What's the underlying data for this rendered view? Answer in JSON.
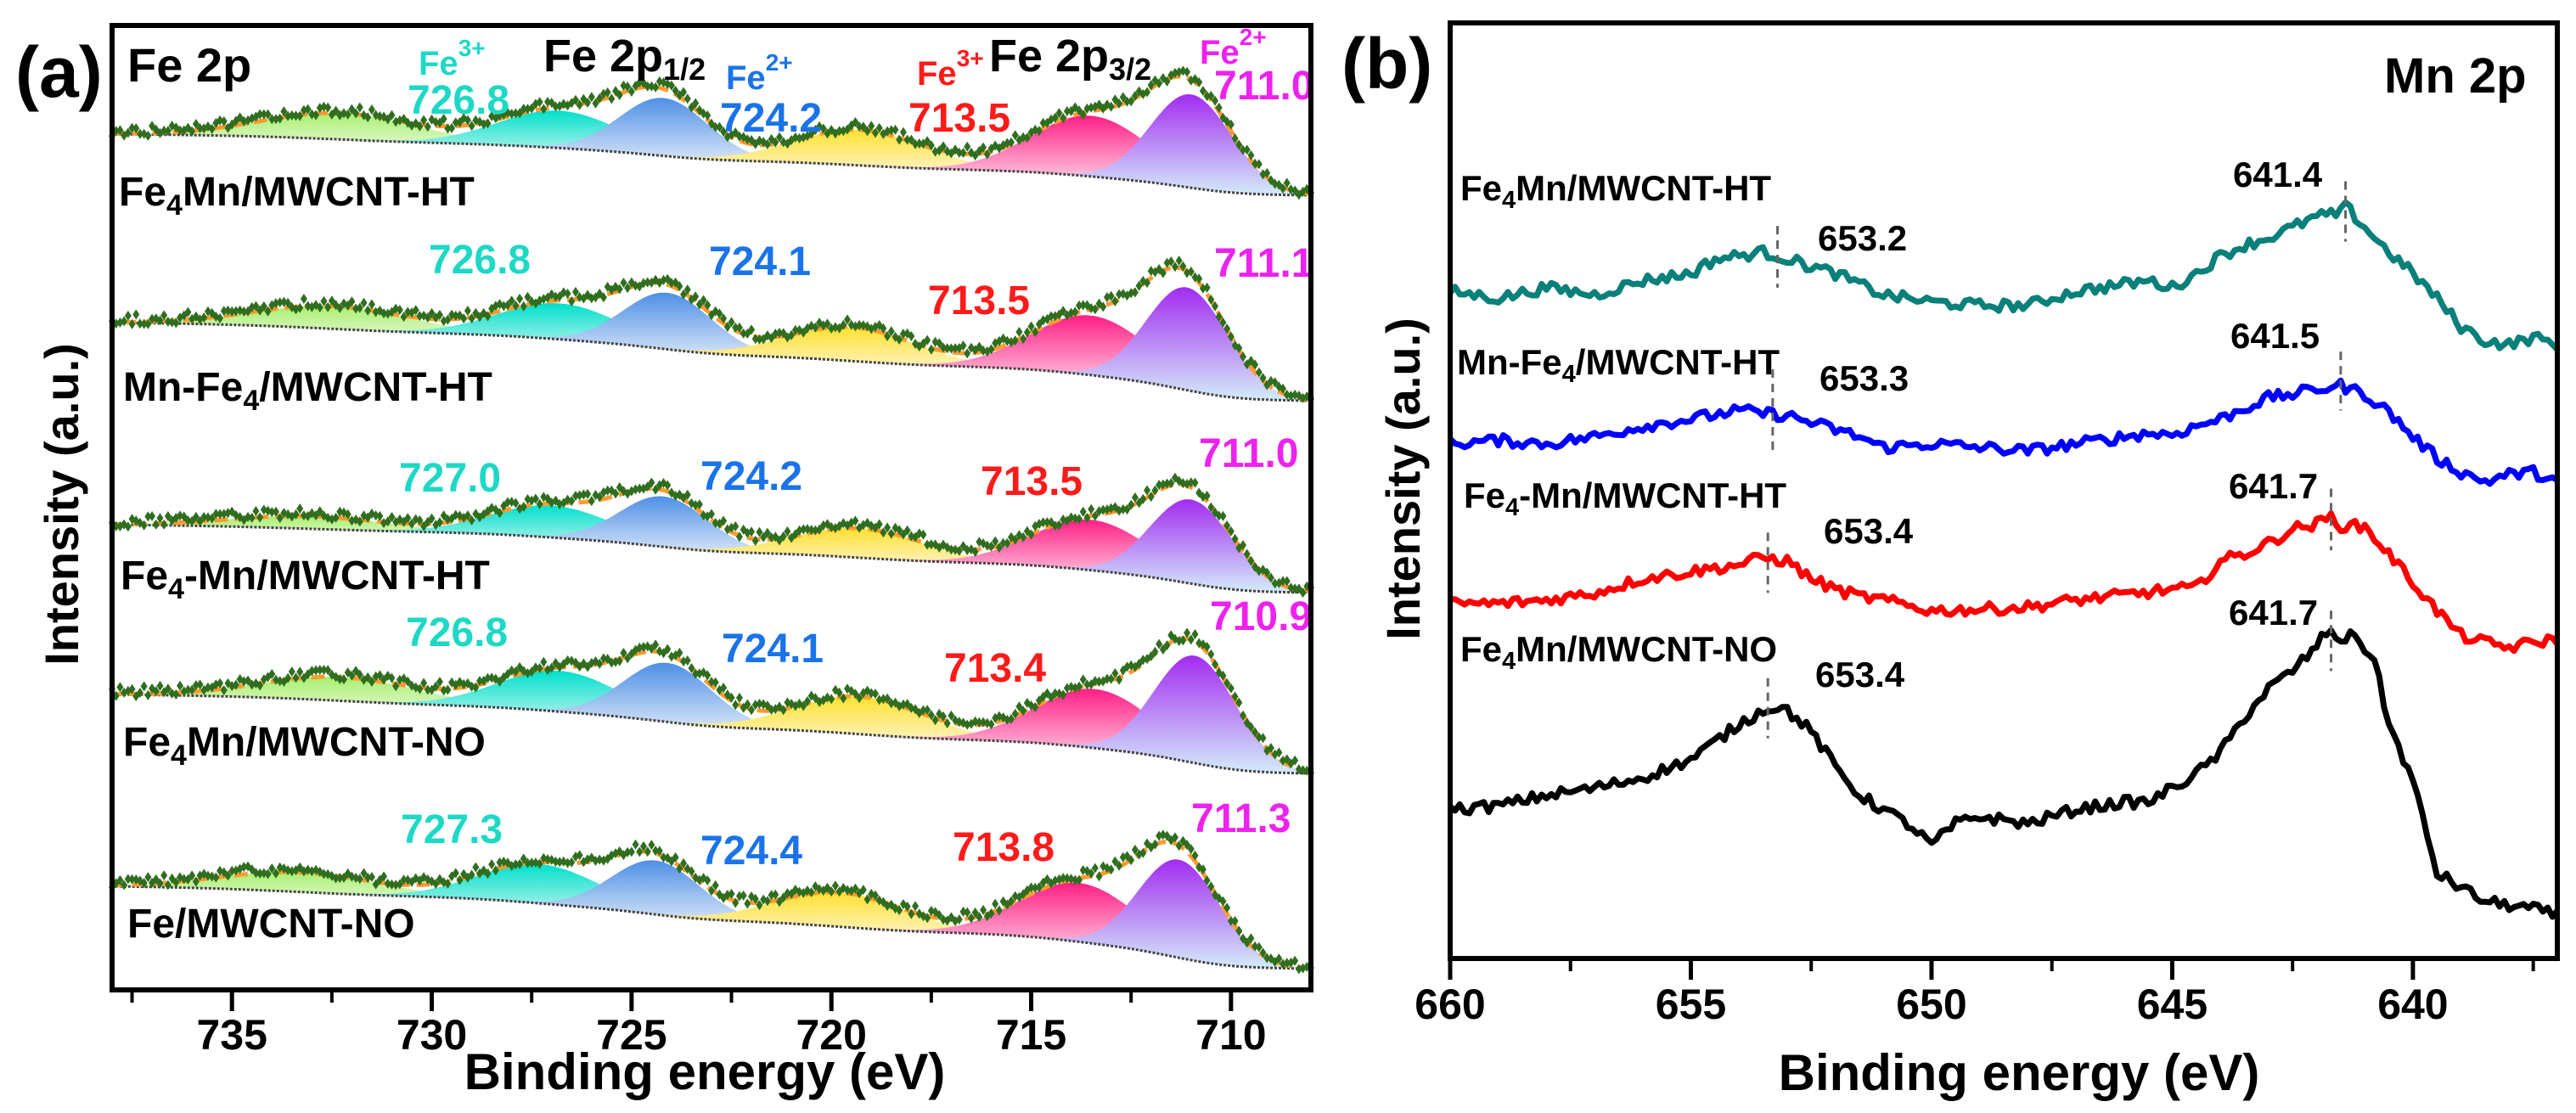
{
  "figure": {
    "panel_a_tag": "(a)",
    "panel_b_tag": "(b)"
  },
  "chart_data": [
    {
      "type": "area",
      "title": "Fe 2p",
      "region_labels": {
        "p12": {
          "main": "Fe 2p",
          "sub": "1/2"
        },
        "p32": {
          "main": "Fe 2p",
          "sub": "3/2"
        }
      },
      "species_labels": [
        {
          "text": "Fe",
          "sup": "3+",
          "color": "#1ed8c6"
        },
        {
          "text": "Fe",
          "sup": "2+",
          "color": "#1a73e8"
        },
        {
          "text": "Fe",
          "sup": "3+",
          "color": "#ff1a1a"
        },
        {
          "text": "Fe",
          "sup": "2+",
          "color": "#ee22ee"
        }
      ],
      "xlabel": "Binding energy (eV)",
      "ylabel": "Intensity (a.u.)",
      "xlim": [
        738,
        708
      ],
      "xticks": [
        735,
        730,
        725,
        720,
        715,
        710
      ],
      "minor_xticks": [
        737.5,
        732.5,
        727.5,
        722.5,
        717.5,
        712.5
      ],
      "peak_label_colors": [
        "#1ed8c6",
        "#1a73e8",
        "#ff1a1a",
        "#ee22ee"
      ],
      "component_colors": {
        "sat_2p12": [
          "#a8f070",
          "#eef8e0"
        ],
        "fe3_2p12": [
          "#00e0cc",
          "#d8f6f2"
        ],
        "fe2_2p12": [
          "#4f8fe6",
          "#dde9f8"
        ],
        "sat_2p32": [
          "#ffe030",
          "#fff6d8"
        ],
        "fe3_2p32": [
          "#ff1f86",
          "#fff0f4"
        ],
        "fe2_2p32": [
          "#a22cf0",
          "#d4ecfa"
        ]
      },
      "envelope_color": "#ff9a30",
      "data_point_color": "#2f6e1f",
      "series": [
        {
          "label": [
            {
              "t": "Fe"
            },
            {
              "t": "4",
              "sub": true
            },
            {
              "t": "Mn/MWCNT-HT"
            }
          ],
          "intensity_scale": 1.0,
          "peak_labels": [
            "726.8",
            "724.2",
            "713.5",
            "711.0"
          ],
          "components": [
            {
              "id": "sat_2p12",
              "center": 732.3,
              "fwhm": 4.6,
              "height": 0.28
            },
            {
              "id": "fe3_2p12",
              "center": 726.8,
              "fwhm": 3.6,
              "height": 0.4
            },
            {
              "id": "fe2_2p12",
              "center": 724.2,
              "fwhm": 2.6,
              "height": 0.62
            },
            {
              "id": "sat_2p32",
              "center": 719.3,
              "fwhm": 3.8,
              "height": 0.38
            },
            {
              "id": "fe3_2p32",
              "center": 713.5,
              "fwhm": 3.5,
              "height": 0.65
            },
            {
              "id": "fe2_2p32",
              "center": 711.0,
              "fwhm": 2.4,
              "height": 1.0
            }
          ]
        },
        {
          "label": [
            {
              "t": "Mn-Fe"
            },
            {
              "t": "4",
              "sub": true
            },
            {
              "t": "/MWCNT-HT"
            }
          ],
          "intensity_scale": 1.1,
          "peak_labels": [
            "726.8",
            "724.1",
            "713.5",
            "711.1"
          ],
          "components": [
            {
              "id": "sat_2p12",
              "center": 732.5,
              "fwhm": 4.6,
              "height": 0.22
            },
            {
              "id": "fe3_2p12",
              "center": 726.8,
              "fwhm": 3.6,
              "height": 0.35
            },
            {
              "id": "fe2_2p12",
              "center": 724.1,
              "fwhm": 2.6,
              "height": 0.55
            },
            {
              "id": "sat_2p32",
              "center": 719.5,
              "fwhm": 3.8,
              "height": 0.33
            },
            {
              "id": "fe3_2p32",
              "center": 713.5,
              "fwhm": 3.5,
              "height": 0.58
            },
            {
              "id": "fe2_2p32",
              "center": 711.1,
              "fwhm": 2.4,
              "height": 1.0
            }
          ]
        },
        {
          "label": [
            {
              "t": "Fe"
            },
            {
              "t": "4",
              "sub": true
            },
            {
              "t": "-Mn/MWCNT-HT"
            }
          ],
          "intensity_scale": 0.9,
          "peak_labels": [
            "727.0",
            "724.2",
            "713.5",
            "711.0"
          ],
          "components": [
            {
              "id": "sat_2p12",
              "center": 733.0,
              "fwhm": 4.6,
              "height": 0.15
            },
            {
              "id": "fe3_2p12",
              "center": 727.0,
              "fwhm": 3.6,
              "height": 0.38
            },
            {
              "id": "fe2_2p12",
              "center": 724.2,
              "fwhm": 2.6,
              "height": 0.6
            },
            {
              "id": "sat_2p32",
              "center": 719.3,
              "fwhm": 3.8,
              "height": 0.35
            },
            {
              "id": "fe3_2p32",
              "center": 713.5,
              "fwhm": 3.5,
              "height": 0.6
            },
            {
              "id": "fe2_2p32",
              "center": 711.0,
              "fwhm": 2.4,
              "height": 1.0
            }
          ]
        },
        {
          "label": [
            {
              "t": "Fe"
            },
            {
              "t": "4",
              "sub": true
            },
            {
              "t": "Mn/MWCNT-NO"
            }
          ],
          "intensity_scale": 1.15,
          "peak_labels": [
            "726.8",
            "724.1",
            "713.4",
            "710.9"
          ],
          "components": [
            {
              "id": "sat_2p12",
              "center": 732.3,
              "fwhm": 4.6,
              "height": 0.22
            },
            {
              "id": "fe3_2p12",
              "center": 726.8,
              "fwhm": 3.6,
              "height": 0.38
            },
            {
              "id": "fe2_2p12",
              "center": 724.1,
              "fwhm": 2.6,
              "height": 0.55
            },
            {
              "id": "sat_2p32",
              "center": 719.3,
              "fwhm": 3.8,
              "height": 0.35
            },
            {
              "id": "fe3_2p32",
              "center": 713.4,
              "fwhm": 3.5,
              "height": 0.55
            },
            {
              "id": "fe2_2p32",
              "center": 710.9,
              "fwhm": 2.4,
              "height": 1.0
            }
          ]
        },
        {
          "label": [
            {
              "t": "Fe/MWCNT-NO"
            }
          ],
          "intensity_scale": 1.05,
          "peak_labels": [
            "727.3",
            "724.4",
            "713.8",
            "711.3"
          ],
          "components": [
            {
              "id": "sat_2p12",
              "center": 733.3,
              "fwhm": 4.6,
              "height": 0.2
            },
            {
              "id": "fe3_2p12",
              "center": 727.3,
              "fwhm": 3.6,
              "height": 0.4
            },
            {
              "id": "fe2_2p12",
              "center": 724.4,
              "fwhm": 2.6,
              "height": 0.55
            },
            {
              "id": "sat_2p32",
              "center": 719.8,
              "fwhm": 3.8,
              "height": 0.35
            },
            {
              "id": "fe3_2p32",
              "center": 713.8,
              "fwhm": 3.5,
              "height": 0.6
            },
            {
              "id": "fe2_2p32",
              "center": 711.3,
              "fwhm": 2.4,
              "height": 1.0
            }
          ]
        }
      ]
    },
    {
      "type": "line",
      "title": "Mn 2p",
      "xlabel": "Binding energy (eV)",
      "ylabel": "Intensity (a.u.)",
      "xlim": [
        660,
        637
      ],
      "ylim": [
        0,
        13.18
      ],
      "xticks": [
        660,
        655,
        650,
        645,
        640
      ],
      "minor_xticks": [
        657.5,
        652.5,
        647.5,
        642.5,
        637.5
      ],
      "marker_color": "#666666",
      "series": [
        {
          "label": [
            {
              "t": "Fe"
            },
            {
              "t": "4",
              "sub": true
            },
            {
              "t": "Mn/MWCNT-HT"
            }
          ],
          "color": "#0a807a",
          "peaks": [
            {
              "label": "653.2",
              "be": 653.2,
              "marker_range": [
                9.45,
                10.32
              ]
            },
            {
              "label": "641.4",
              "be": 641.4,
              "marker_range": [
                10.1,
                10.95
              ]
            }
          ],
          "x": [
            660,
            659,
            658,
            657,
            656,
            655,
            654.5,
            654,
            653.5,
            653.2,
            652.5,
            652,
            651.5,
            651,
            650.5,
            650,
            649,
            648,
            647,
            646,
            645.5,
            645,
            644.5,
            644,
            643.5,
            643,
            642.5,
            642,
            641.5,
            641.4,
            641,
            640.5,
            640,
            639.5,
            639,
            638.5,
            638,
            637.5,
            637
          ],
          "y": [
            9.4,
            9.3,
            9.45,
            9.35,
            9.55,
            9.65,
            9.85,
            9.9,
            9.95,
            9.9,
            9.75,
            9.65,
            9.5,
            9.35,
            9.3,
            9.25,
            9.2,
            9.2,
            9.4,
            9.5,
            9.55,
            9.45,
            9.65,
            9.9,
            10.05,
            10.15,
            10.3,
            10.45,
            10.5,
            10.6,
            10.3,
            9.95,
            9.65,
            9.3,
            8.9,
            8.7,
            8.65,
            8.75,
            8.65
          ]
        },
        {
          "label": [
            {
              "t": "Mn-Fe"
            },
            {
              "t": "4",
              "sub": true
            },
            {
              "t": "/MWCNT-HT"
            }
          ],
          "color": "#0000ff",
          "peaks": [
            {
              "label": "653.3",
              "be": 653.3,
              "marker_range": [
                7.15,
                8.3
              ]
            },
            {
              "label": "641.5",
              "be": 641.5,
              "marker_range": [
                7.72,
                8.55
              ]
            }
          ],
          "x": [
            660,
            659,
            658,
            657,
            656,
            655,
            654,
            653.5,
            653,
            652.5,
            652,
            651.5,
            651,
            650,
            649,
            648,
            647,
            646,
            645.5,
            645,
            644.5,
            644,
            643.5,
            643,
            642.5,
            642,
            641.5,
            641,
            640.5,
            640,
            639.5,
            639,
            638.5,
            638,
            637.5,
            637
          ],
          "y": [
            7.25,
            7.3,
            7.25,
            7.35,
            7.5,
            7.6,
            7.72,
            7.68,
            7.65,
            7.55,
            7.45,
            7.35,
            7.2,
            7.25,
            7.2,
            7.15,
            7.25,
            7.35,
            7.4,
            7.38,
            7.5,
            7.6,
            7.75,
            7.9,
            7.95,
            8.02,
            8.07,
            7.95,
            7.7,
            7.35,
            7.05,
            6.85,
            6.72,
            6.82,
            6.85,
            6.72
          ]
        },
        {
          "label": [
            {
              "t": "Fe"
            },
            {
              "t": "4",
              "sub": true
            },
            {
              "t": "-Mn/MWCNT-HT"
            }
          ],
          "color": "#ff0000",
          "peaks": [
            {
              "label": "653.4",
              "be": 653.4,
              "marker_range": [
                5.15,
                6.0
              ]
            },
            {
              "label": "641.7",
              "be": 641.7,
              "marker_range": [
                5.75,
                6.62
              ]
            }
          ],
          "x": [
            660,
            659,
            658,
            657,
            656,
            655,
            654,
            653.5,
            653,
            652.5,
            652,
            651.5,
            651,
            650,
            649,
            648,
            647,
            646,
            645,
            644.5,
            644,
            643.5,
            643,
            642.5,
            642,
            641.7,
            641.5,
            641,
            640.5,
            640,
            639.5,
            639,
            638.5,
            638,
            637.5,
            637
          ],
          "y": [
            5.0,
            5.0,
            5.05,
            5.15,
            5.35,
            5.45,
            5.55,
            5.65,
            5.6,
            5.35,
            5.2,
            5.1,
            5.05,
            4.9,
            4.92,
            4.95,
            5.05,
            5.12,
            5.2,
            5.22,
            5.6,
            5.7,
            5.85,
            6.05,
            6.12,
            6.22,
            6.1,
            6.08,
            5.7,
            5.3,
            4.9,
            4.55,
            4.45,
            4.38,
            4.45,
            4.5
          ]
        },
        {
          "label": [
            {
              "t": "Fe"
            },
            {
              "t": "4",
              "sub": true
            },
            {
              "t": "Mn/MWCNT-NO"
            }
          ],
          "color": "#000000",
          "peaks": [
            {
              "label": "653.4",
              "be": 653.4,
              "marker_range": [
                3.1,
                3.95
              ]
            },
            {
              "label": "641.7",
              "be": 641.7,
              "marker_range": [
                4.05,
                4.9
              ]
            }
          ],
          "x": [
            660,
            659,
            658,
            657,
            656,
            655,
            654.5,
            654,
            653.5,
            653.3,
            653,
            652.5,
            652,
            651.5,
            651,
            650.5,
            650,
            649.5,
            649,
            648,
            647,
            646,
            645.5,
            645,
            644.5,
            644,
            643.5,
            643,
            642.5,
            642,
            641.8,
            641.5,
            641.2,
            640.8,
            640.5,
            640,
            639.5,
            639,
            638.5,
            638,
            637.5,
            637
          ],
          "y": [
            2.1,
            2.15,
            2.3,
            2.4,
            2.55,
            2.8,
            3.05,
            3.3,
            3.5,
            3.55,
            3.5,
            3.2,
            2.7,
            2.3,
            2.1,
            1.9,
            1.6,
            1.9,
            2.0,
            1.9,
            2.1,
            2.2,
            2.2,
            2.4,
            2.6,
            2.9,
            3.4,
            3.8,
            4.05,
            4.4,
            4.6,
            4.5,
            4.55,
            4.2,
            3.3,
            2.5,
            1.2,
            1.0,
            0.8,
            0.75,
            0.7,
            0.6
          ]
        }
      ]
    }
  ]
}
